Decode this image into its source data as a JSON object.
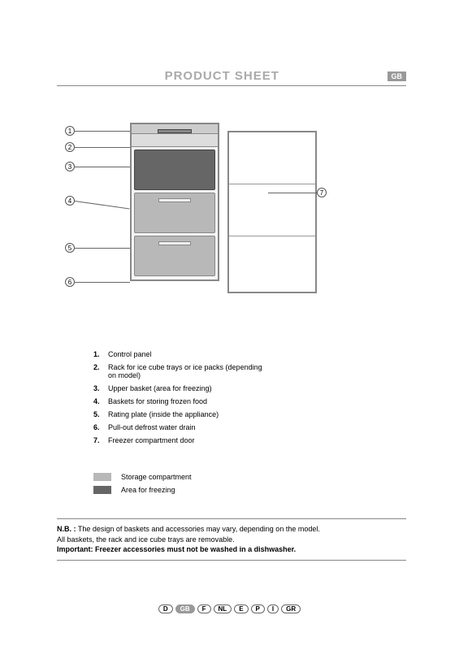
{
  "header": {
    "title": "PRODUCT SHEET",
    "lang_badge": "GB"
  },
  "callouts": {
    "c1": "1",
    "c2": "2",
    "c3": "3",
    "c4": "4",
    "c5": "5",
    "c6": "6",
    "c7": "7"
  },
  "parts": [
    {
      "n": "1.",
      "t": "Control panel"
    },
    {
      "n": "2.",
      "t": "Rack for ice cube trays or ice packs (depending on model)"
    },
    {
      "n": "3.",
      "t": "Upper basket (area for freezing)"
    },
    {
      "n": "4.",
      "t": "Baskets for storing frozen food"
    },
    {
      "n": "5.",
      "t": "Rating plate (inside the appliance)"
    },
    {
      "n": "6.",
      "t": "Pull-out defrost water drain"
    },
    {
      "n": "7.",
      "t": "Freezer compartment door"
    }
  ],
  "legend": {
    "storage": {
      "color": "#b8b8b8",
      "label": "Storage compartment"
    },
    "freezing": {
      "color": "#666666",
      "label": "Area for freezing"
    }
  },
  "note": {
    "nb_label": "N.B. :",
    "line1": " The design of baskets and accessories may vary, depending on the model.",
    "line2": "All baskets, the rack and ice cube trays are removable.",
    "line3": "Important: Freezer accessories must not be washed in a dishwasher."
  },
  "footer_langs": [
    "D",
    "GB",
    "F",
    "NL",
    "E",
    "P",
    "I",
    "GR"
  ],
  "active_lang": "GB",
  "colors": {
    "swatch_storage": "#b8b8b8",
    "swatch_freezing": "#666666"
  }
}
